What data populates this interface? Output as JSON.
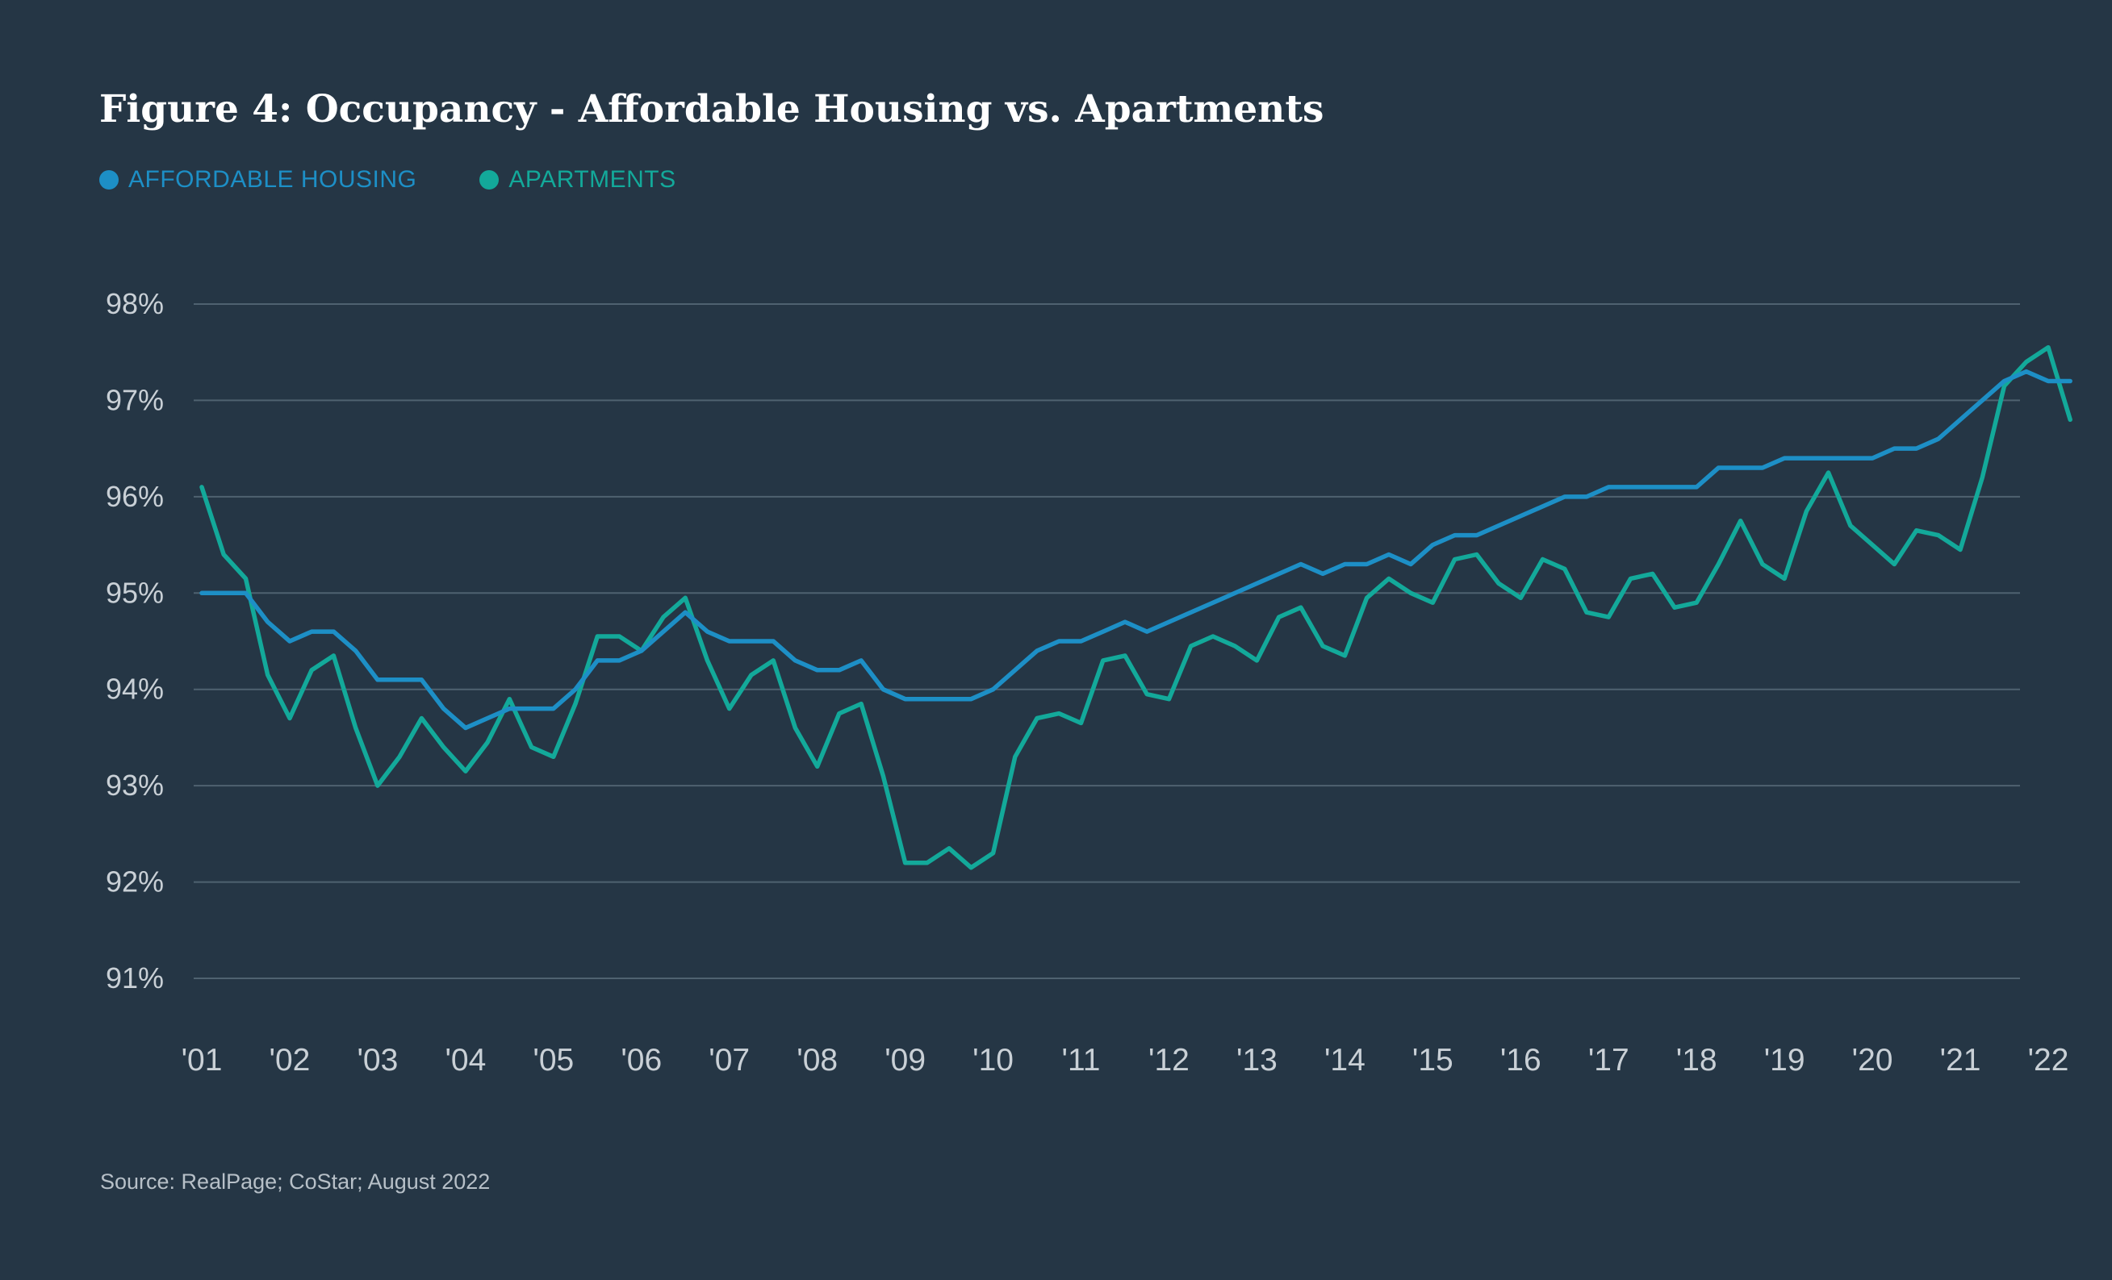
{
  "title": "Figure 4: Occupancy - Affordable Housing vs. Apartments",
  "source": "Source: RealPage; CoStar; August 2022",
  "colors": {
    "background": "#253645",
    "grid": "#4f6270",
    "tick_text": "#c9d0d6",
    "affordable_housing": "#1d8fc6",
    "apartments": "#13a99a"
  },
  "chart_data": {
    "type": "line",
    "xlabel": "",
    "ylabel": "",
    "ylim": [
      91,
      98
    ],
    "xlim": [
      2001,
      2022.5
    ],
    "y_ticks": [
      98,
      97,
      96,
      95,
      94,
      93,
      92,
      91
    ],
    "y_tick_labels": [
      "98%",
      "97%",
      "96%",
      "95%",
      "94%",
      "93%",
      "92%",
      "91%"
    ],
    "x_ticks": [
      2001,
      2002,
      2003,
      2004,
      2005,
      2006,
      2007,
      2008,
      2009,
      2010,
      2011,
      2012,
      2013,
      2014,
      2015,
      2016,
      2017,
      2018,
      2019,
      2020,
      2021,
      2022
    ],
    "x_tick_labels": [
      "'01",
      "'02",
      "'03",
      "'04",
      "'05",
      "'06",
      "'07",
      "'08",
      "'09",
      "'10",
      "'11",
      "'12",
      "'13",
      "'14",
      "'15",
      "'16",
      "'17",
      "'18",
      "'19",
      "'20",
      "'21",
      "'22"
    ],
    "grid": "horizontal",
    "legend_position": "top-left",
    "series": [
      {
        "name": "AFFORDABLE HOUSING",
        "color": "#1d8fc6",
        "x": [
          2001.0,
          2001.5,
          2001.75,
          2002.0,
          2002.25,
          2002.5,
          2002.75,
          2003.0,
          2003.5,
          2003.75,
          2004.0,
          2004.25,
          2004.5,
          2005.0,
          2005.25,
          2005.5,
          2005.75,
          2006.0,
          2006.25,
          2006.5,
          2006.75,
          2007.0,
          2007.25,
          2007.5,
          2007.75,
          2008.0,
          2008.25,
          2008.5,
          2008.75,
          2009.0,
          2009.5,
          2009.75,
          2010.0,
          2010.25,
          2010.5,
          2010.75,
          2011.0,
          2011.25,
          2011.5,
          2011.75,
          2013.5,
          2013.75,
          2014.0,
          2014.25,
          2014.5,
          2014.75,
          2015.0,
          2015.25,
          2015.5,
          2016.5,
          2016.75,
          2017.0,
          2018.0,
          2018.25,
          2018.75,
          2019.0,
          2020.0,
          2020.25,
          2020.5,
          2020.75,
          2021.0,
          2021.5,
          2021.75,
          2022.0,
          2022.25
        ],
        "values": [
          95.0,
          95.0,
          94.7,
          94.5,
          94.6,
          94.6,
          94.4,
          94.1,
          94.1,
          93.8,
          93.6,
          93.7,
          93.8,
          93.8,
          94.0,
          94.3,
          94.3,
          94.4,
          94.6,
          94.8,
          94.6,
          94.5,
          94.5,
          94.5,
          94.3,
          94.2,
          94.2,
          94.3,
          94.0,
          93.9,
          93.9,
          93.9,
          94.0,
          94.2,
          94.4,
          94.5,
          94.5,
          94.6,
          94.7,
          94.6,
          95.3,
          95.2,
          95.3,
          95.3,
          95.4,
          95.3,
          95.5,
          95.6,
          95.6,
          96.0,
          96.0,
          96.1,
          96.1,
          96.3,
          96.3,
          96.4,
          96.4,
          96.5,
          96.5,
          96.6,
          96.8,
          97.2,
          97.3,
          97.2,
          97.2
        ]
      },
      {
        "name": "APARTMENTS",
        "color": "#13a99a",
        "x": [
          2001.0,
          2001.25,
          2001.5,
          2001.75,
          2002.0,
          2002.25,
          2002.5,
          2002.75,
          2003.0,
          2003.25,
          2003.5,
          2003.75,
          2004.0,
          2004.25,
          2004.5,
          2004.75,
          2005.0,
          2005.25,
          2005.5,
          2005.75,
          2006.0,
          2006.25,
          2006.5,
          2006.75,
          2007.0,
          2007.25,
          2007.5,
          2007.75,
          2008.0,
          2008.25,
          2008.5,
          2008.75,
          2009.0,
          2009.25,
          2009.5,
          2009.75,
          2010.0,
          2010.25,
          2010.5,
          2010.75,
          2011.0,
          2011.25,
          2011.5,
          2011.75,
          2012.0,
          2012.25,
          2012.5,
          2012.75,
          2013.0,
          2013.25,
          2013.5,
          2013.75,
          2014.0,
          2014.25,
          2014.5,
          2014.75,
          2015.0,
          2015.25,
          2015.5,
          2015.75,
          2016.0,
          2016.25,
          2016.5,
          2016.75,
          2017.0,
          2017.25,
          2017.5,
          2017.75,
          2018.0,
          2018.25,
          2018.5,
          2018.75,
          2019.0,
          2019.25,
          2019.5,
          2019.75,
          2020.0,
          2020.25,
          2020.5,
          2020.75,
          2021.0,
          2021.25,
          2021.5,
          2021.75,
          2022.0,
          2022.25
        ],
        "values": [
          96.1,
          95.4,
          95.15,
          94.15,
          93.7,
          94.2,
          94.35,
          93.6,
          93.0,
          93.3,
          93.7,
          93.4,
          93.15,
          93.45,
          93.9,
          93.4,
          93.3,
          93.85,
          94.55,
          94.55,
          94.4,
          94.75,
          94.95,
          94.3,
          93.8,
          94.15,
          94.3,
          93.6,
          93.2,
          93.75,
          93.85,
          93.1,
          92.2,
          92.2,
          92.35,
          92.15,
          92.3,
          93.3,
          93.7,
          93.75,
          93.65,
          94.3,
          94.35,
          93.95,
          93.9,
          94.45,
          94.55,
          94.45,
          94.3,
          94.75,
          94.85,
          94.45,
          94.35,
          94.95,
          95.15,
          95.0,
          94.9,
          95.35,
          95.4,
          95.1,
          94.95,
          95.35,
          95.25,
          94.8,
          94.75,
          95.15,
          95.2,
          94.85,
          94.9,
          95.3,
          95.75,
          95.3,
          95.15,
          95.85,
          96.25,
          95.7,
          95.5,
          95.3,
          95.65,
          95.6,
          95.45,
          96.2,
          97.15,
          97.4,
          97.55,
          96.8
        ]
      }
    ]
  }
}
